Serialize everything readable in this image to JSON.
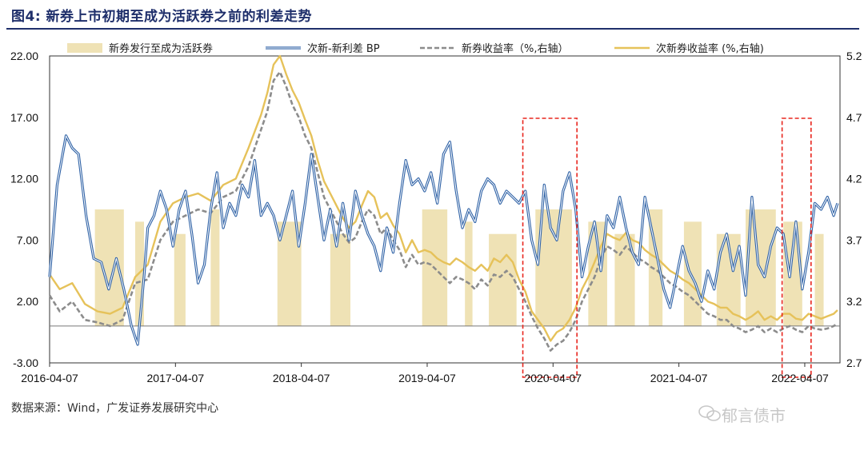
{
  "header": {
    "title": "图4: 新券上市初期至成为活跃券之前的利差走势"
  },
  "footer": {
    "source": "数据来源：Wind，广发证券发展研究中心",
    "watermark": "郁言债市"
  },
  "chart_data": {
    "type": "line",
    "title": "图4: 新券上市初期至成为活跃券之前的利差走势",
    "x_labels": [
      "2016-04-07",
      "2017-04-07",
      "2018-04-07",
      "2019-04-07",
      "2020-04-07",
      "2021-04-07",
      "2022-04-07"
    ],
    "x_range": [
      2016.27,
      2022.55
    ],
    "left_axis": {
      "ticks": [
        "22.00",
        "17.00",
        "12.00",
        "7.00",
        "2.00",
        "-3.00"
      ],
      "range": [
        -3,
        22
      ]
    },
    "right_axis": {
      "ticks": [
        "5.2",
        "4.7",
        "4.2",
        "3.7",
        "3.2",
        "2.7"
      ],
      "range": [
        2.7,
        5.2
      ]
    },
    "legend": [
      "新券发行至成为活跃券",
      "次新-新利差 BP",
      "新券收益率（%,右轴）",
      "次新券收益率 (%,右轴)"
    ],
    "colors": {
      "shade": "#efe2b5",
      "spread": "#2f62a6",
      "new_yield": "#8c8c8c",
      "sub_new_yield": "#e6c25a",
      "highlight": "#e8261e"
    },
    "shaded_periods": [
      [
        2016.63,
        2016.86
      ],
      [
        2016.95,
        2017.02
      ],
      [
        2017.26,
        2017.35
      ],
      [
        2017.55,
        2017.62
      ],
      [
        2018.08,
        2018.27
      ],
      [
        2018.5,
        2018.66
      ],
      [
        2019.23,
        2019.43
      ],
      [
        2019.57,
        2019.63
      ],
      [
        2019.76,
        2019.98
      ],
      [
        2020.13,
        2020.42
      ],
      [
        2020.55,
        2020.7
      ],
      [
        2020.76,
        2020.92
      ],
      [
        2021.03,
        2021.14
      ],
      [
        2021.31,
        2021.45
      ],
      [
        2021.57,
        2021.76
      ],
      [
        2021.8,
        2022.04
      ],
      [
        2022.1,
        2022.25
      ],
      [
        2022.35,
        2022.42
      ]
    ],
    "highlight_boxes": [
      [
        2020.03,
        2020.46
      ],
      [
        2022.09,
        2022.32
      ]
    ],
    "series": [
      {
        "name": "次新-新利差 BP",
        "axis": "left",
        "x": [
          2016.27,
          2016.33,
          2016.4,
          2016.45,
          2016.5,
          2016.56,
          2016.62,
          2016.68,
          2016.74,
          2016.8,
          2016.86,
          2016.92,
          2016.97,
          2017.02,
          2017.05,
          2017.1,
          2017.15,
          2017.2,
          2017.25,
          2017.3,
          2017.35,
          2017.4,
          2017.45,
          2017.5,
          2017.55,
          2017.6,
          2017.65,
          2017.7,
          2017.75,
          2017.8,
          2017.85,
          2017.9,
          2017.95,
          2018.0,
          2018.05,
          2018.1,
          2018.15,
          2018.2,
          2018.25,
          2018.3,
          2018.35,
          2018.4,
          2018.45,
          2018.5,
          2018.55,
          2018.6,
          2018.65,
          2018.7,
          2018.75,
          2018.8,
          2018.85,
          2018.9,
          2018.95,
          2019.0,
          2019.05,
          2019.1,
          2019.15,
          2019.2,
          2019.25,
          2019.3,
          2019.35,
          2019.4,
          2019.45,
          2019.5,
          2019.55,
          2019.6,
          2019.65,
          2019.7,
          2019.75,
          2019.8,
          2019.85,
          2019.9,
          2019.95,
          2020.0,
          2020.05,
          2020.1,
          2020.15,
          2020.2,
          2020.25,
          2020.3,
          2020.35,
          2020.4,
          2020.45,
          2020.5,
          2020.55,
          2020.6,
          2020.65,
          2020.7,
          2020.75,
          2020.8,
          2020.85,
          2020.9,
          2020.95,
          2021.0,
          2021.05,
          2021.1,
          2021.15,
          2021.2,
          2021.25,
          2021.3,
          2021.35,
          2021.4,
          2021.45,
          2021.5,
          2021.55,
          2021.6,
          2021.65,
          2021.7,
          2021.75,
          2021.8,
          2021.85,
          2021.9,
          2021.95,
          2022.0,
          2022.05,
          2022.1,
          2022.15,
          2022.2,
          2022.25,
          2022.3,
          2022.35,
          2022.4,
          2022.45,
          2022.5,
          2022.53
        ],
        "values": [
          4.0,
          11.5,
          15.5,
          14.5,
          14.0,
          9.0,
          5.5,
          5.2,
          3.0,
          5.5,
          3.0,
          0.0,
          -1.5,
          4.0,
          8.0,
          9.0,
          11.0,
          9.5,
          6.5,
          9.5,
          11.0,
          7.5,
          3.5,
          5.0,
          9.5,
          12.5,
          8.0,
          10.0,
          9.0,
          11.5,
          10.5,
          13.5,
          9.0,
          10.0,
          9.0,
          7.0,
          9.0,
          11.0,
          6.5,
          10.0,
          14.0,
          10.5,
          7.0,
          9.5,
          6.5,
          10.0,
          7.0,
          11.0,
          9.0,
          7.5,
          6.5,
          4.5,
          8.0,
          6.0,
          10.0,
          13.5,
          11.5,
          12.0,
          11.0,
          12.5,
          10.0,
          14.0,
          15.0,
          11.0,
          8.0,
          9.5,
          8.5,
          11.0,
          12.0,
          11.5,
          10.0,
          11.0,
          10.5,
          10.0,
          11.0,
          7.0,
          5.0,
          11.5,
          8.0,
          7.0,
          11.0,
          12.5,
          9.5,
          4.0,
          6.5,
          8.5,
          4.5,
          9.0,
          8.0,
          10.5,
          8.0,
          6.0,
          5.0,
          10.5,
          8.0,
          5.5,
          3.0,
          1.5,
          4.0,
          6.5,
          4.5,
          3.5,
          2.0,
          4.5,
          3.0,
          6.0,
          7.5,
          4.5,
          6.5,
          2.5,
          10.5,
          5.0,
          4.0,
          6.5,
          8.0,
          7.5,
          4.0,
          8.5,
          3.0,
          6.0,
          10.0,
          9.5,
          10.5,
          9.0,
          10.0
        ]
      },
      {
        "name": "新券收益率（%,右轴）",
        "axis": "right",
        "x": [
          2016.27,
          2016.35,
          2016.45,
          2016.55,
          2016.65,
          2016.75,
          2016.85,
          2016.95,
          2017.05,
          2017.15,
          2017.25,
          2017.35,
          2017.45,
          2017.55,
          2017.65,
          2017.75,
          2017.85,
          2017.95,
          2018.0,
          2018.05,
          2018.1,
          2018.15,
          2018.2,
          2018.25,
          2018.3,
          2018.35,
          2018.4,
          2018.45,
          2018.5,
          2018.55,
          2018.6,
          2018.65,
          2018.7,
          2018.75,
          2018.8,
          2018.85,
          2018.9,
          2018.95,
          2019.0,
          2019.05,
          2019.1,
          2019.15,
          2019.2,
          2019.25,
          2019.3,
          2019.35,
          2019.4,
          2019.45,
          2019.5,
          2019.55,
          2019.6,
          2019.65,
          2019.7,
          2019.75,
          2019.8,
          2019.85,
          2019.9,
          2019.95,
          2020.0,
          2020.05,
          2020.1,
          2020.15,
          2020.2,
          2020.25,
          2020.3,
          2020.35,
          2020.4,
          2020.45,
          2020.5,
          2020.55,
          2020.6,
          2020.65,
          2020.7,
          2020.75,
          2020.8,
          2020.85,
          2020.9,
          2020.95,
          2021.0,
          2021.05,
          2021.1,
          2021.15,
          2021.2,
          2021.25,
          2021.3,
          2021.35,
          2021.4,
          2021.45,
          2021.5,
          2021.55,
          2021.6,
          2021.65,
          2021.7,
          2021.75,
          2021.8,
          2021.85,
          2021.9,
          2021.95,
          2022.0,
          2022.05,
          2022.1,
          2022.15,
          2022.2,
          2022.25,
          2022.3,
          2022.35,
          2022.4,
          2022.45,
          2022.5,
          2022.53
        ],
        "values": [
          3.25,
          3.12,
          3.2,
          3.05,
          3.03,
          3.0,
          3.05,
          3.35,
          3.38,
          3.7,
          3.85,
          3.9,
          3.95,
          3.92,
          4.05,
          4.1,
          4.3,
          4.6,
          4.75,
          5.0,
          5.07,
          4.95,
          4.8,
          4.7,
          4.55,
          4.45,
          4.25,
          4.05,
          3.95,
          3.85,
          3.75,
          3.68,
          3.72,
          3.85,
          3.95,
          3.9,
          3.75,
          3.8,
          3.7,
          3.62,
          3.48,
          3.58,
          3.5,
          3.52,
          3.5,
          3.45,
          3.4,
          3.35,
          3.4,
          3.38,
          3.35,
          3.3,
          3.38,
          3.33,
          3.42,
          3.4,
          3.45,
          3.4,
          3.3,
          3.2,
          3.08,
          2.98,
          2.9,
          2.8,
          2.85,
          2.88,
          2.95,
          3.05,
          3.2,
          3.3,
          3.4,
          3.55,
          3.65,
          3.62,
          3.58,
          3.65,
          3.6,
          3.55,
          3.52,
          3.48,
          3.45,
          3.4,
          3.35,
          3.32,
          3.28,
          3.25,
          3.2,
          3.15,
          3.1,
          3.08,
          3.05,
          3.05,
          3.0,
          2.98,
          2.95,
          2.97,
          3.0,
          2.95,
          2.98,
          2.95,
          2.98,
          3.0,
          2.97,
          2.95,
          3.0,
          2.98,
          2.97,
          2.98,
          3.0,
          3.02
        ]
      },
      {
        "name": "次新券收益率 (%,右轴)",
        "axis": "right",
        "x": [
          2016.27,
          2016.35,
          2016.45,
          2016.55,
          2016.65,
          2016.75,
          2016.85,
          2016.95,
          2017.05,
          2017.15,
          2017.25,
          2017.35,
          2017.45,
          2017.55,
          2017.65,
          2017.75,
          2017.85,
          2017.95,
          2018.0,
          2018.05,
          2018.1,
          2018.15,
          2018.2,
          2018.25,
          2018.3,
          2018.35,
          2018.4,
          2018.45,
          2018.5,
          2018.55,
          2018.6,
          2018.65,
          2018.7,
          2018.75,
          2018.8,
          2018.85,
          2018.9,
          2018.95,
          2019.0,
          2019.05,
          2019.1,
          2019.15,
          2019.2,
          2019.25,
          2019.3,
          2019.35,
          2019.4,
          2019.45,
          2019.5,
          2019.55,
          2019.6,
          2019.65,
          2019.7,
          2019.75,
          2019.8,
          2019.85,
          2019.9,
          2019.95,
          2020.0,
          2020.05,
          2020.1,
          2020.15,
          2020.2,
          2020.25,
          2020.3,
          2020.35,
          2020.4,
          2020.45,
          2020.5,
          2020.55,
          2020.6,
          2020.65,
          2020.7,
          2020.75,
          2020.8,
          2020.85,
          2020.9,
          2020.95,
          2021.0,
          2021.05,
          2021.1,
          2021.15,
          2021.2,
          2021.25,
          2021.3,
          2021.35,
          2021.4,
          2021.45,
          2021.5,
          2021.55,
          2021.6,
          2021.65,
          2021.7,
          2021.75,
          2021.8,
          2021.85,
          2021.9,
          2021.95,
          2022.0,
          2022.05,
          2022.1,
          2022.15,
          2022.2,
          2022.25,
          2022.3,
          2022.35,
          2022.4,
          2022.45,
          2022.5,
          2022.53
        ],
        "values": [
          3.42,
          3.3,
          3.35,
          3.18,
          3.12,
          3.1,
          3.15,
          3.4,
          3.5,
          3.85,
          4.0,
          4.05,
          4.08,
          4.02,
          4.15,
          4.2,
          4.45,
          4.72,
          4.9,
          5.13,
          5.2,
          5.05,
          4.92,
          4.82,
          4.68,
          4.55,
          4.35,
          4.18,
          4.08,
          3.98,
          3.88,
          3.8,
          3.85,
          3.98,
          4.1,
          4.05,
          3.88,
          3.92,
          3.82,
          3.75,
          3.6,
          3.7,
          3.6,
          3.62,
          3.6,
          3.55,
          3.52,
          3.5,
          3.55,
          3.52,
          3.48,
          3.45,
          3.5,
          3.45,
          3.55,
          3.52,
          3.58,
          3.52,
          3.38,
          3.28,
          3.12,
          3.05,
          2.98,
          2.88,
          2.95,
          2.98,
          3.05,
          3.15,
          3.3,
          3.4,
          3.52,
          3.65,
          3.75,
          3.72,
          3.7,
          3.76,
          3.7,
          3.68,
          3.62,
          3.58,
          3.55,
          3.5,
          3.45,
          3.42,
          3.38,
          3.35,
          3.3,
          3.25,
          3.2,
          3.18,
          3.15,
          3.15,
          3.1,
          3.08,
          3.05,
          3.08,
          3.12,
          3.05,
          3.08,
          3.05,
          3.1,
          3.1,
          3.06,
          3.05,
          3.1,
          3.08,
          3.06,
          3.08,
          3.1,
          3.13
        ]
      }
    ]
  }
}
